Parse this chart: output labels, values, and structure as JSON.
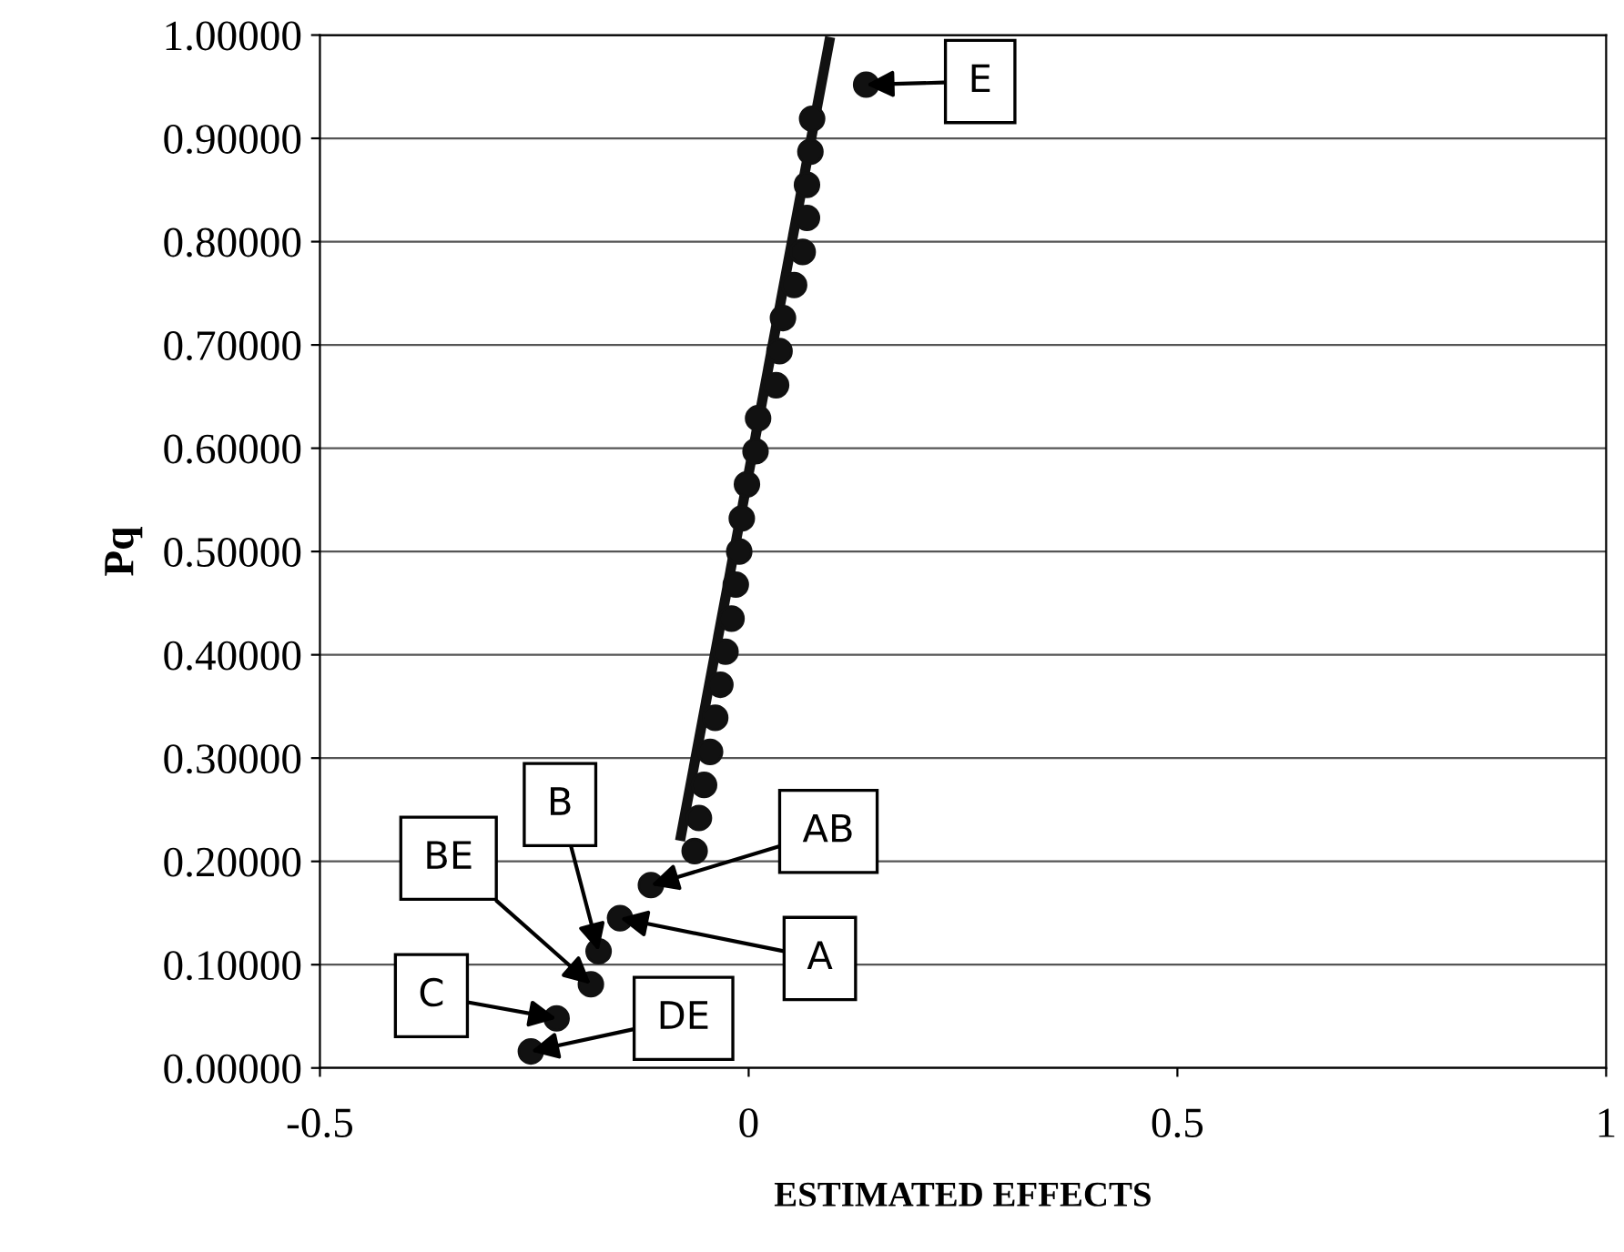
{
  "chart_data": {
    "type": "scatter",
    "xlabel": "ESTIMATED EFFECTS",
    "ylabel": "Pq",
    "xlim": [
      -0.5,
      1
    ],
    "xticks": [
      -0.5,
      0,
      0.5,
      1
    ],
    "ylim": [
      0,
      1
    ],
    "yticks": [
      {
        "value": 0,
        "label": "0.00000"
      },
      {
        "value": 0.1,
        "label": "0.10000"
      },
      {
        "value": 0.2,
        "label": "0.20000"
      },
      {
        "value": 0.3,
        "label": "0.30000"
      },
      {
        "value": 0.4,
        "label": "0.40000"
      },
      {
        "value": 0.5,
        "label": "0.50000"
      },
      {
        "value": 0.6,
        "label": "0.60000"
      },
      {
        "value": 0.7,
        "label": "0.70000"
      },
      {
        "value": 0.8,
        "label": "0.80000"
      },
      {
        "value": 0.9,
        "label": "0.90000"
      },
      {
        "value": 1,
        "label": "1.00000"
      }
    ],
    "grid": "y",
    "series": [
      {
        "marker": "circle",
        "color": "#111111",
        "x": [
          -0.254,
          -0.224,
          -0.184,
          -0.175,
          -0.15,
          -0.114,
          -0.063,
          -0.058,
          -0.052,
          -0.045,
          -0.039,
          -0.033,
          -0.027,
          -0.02,
          -0.015,
          -0.011,
          -0.008,
          -0.002,
          0.008,
          0.011,
          0.032,
          0.036,
          0.04,
          0.053,
          0.063,
          0.068,
          0.068,
          0.072,
          0.074,
          0.137
        ],
        "values": [
          0.016,
          0.048,
          0.081,
          0.113,
          0.145,
          0.177,
          0.21,
          0.242,
          0.274,
          0.306,
          0.339,
          0.371,
          0.403,
          0.435,
          0.468,
          0.5,
          0.532,
          0.565,
          0.597,
          0.629,
          0.661,
          0.694,
          0.726,
          0.758,
          0.79,
          0.823,
          0.855,
          0.887,
          0.919,
          0.952
        ]
      },
      {
        "type": "line",
        "color": "#111111",
        "x": [
          -0.08,
          0.095
        ],
        "values": [
          0.22,
          0.998
        ]
      }
    ],
    "annotations": [
      {
        "text": "E",
        "x": 0.137,
        "y": 0.952
      },
      {
        "text": "AB",
        "x": -0.114,
        "y": 0.177
      },
      {
        "text": "A",
        "x": -0.15,
        "y": 0.145
      },
      {
        "text": "B",
        "x": -0.175,
        "y": 0.113
      },
      {
        "text": "BE",
        "x": -0.184,
        "y": 0.081
      },
      {
        "text": "C",
        "x": -0.224,
        "y": 0.048
      },
      {
        "text": "DE",
        "x": -0.254,
        "y": 0.016
      }
    ]
  }
}
